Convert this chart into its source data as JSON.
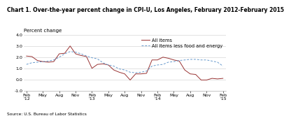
{
  "title": "Chart 1. Over-the-year percent change in CPI-U, Los Angeles, February 2012-February 2015",
  "ylabel": "Percent change",
  "source": "Source: U.S. Bureau of Labor Statistics",
  "ylim": [
    -1.0,
    4.0
  ],
  "yticks": [
    -1.0,
    0.0,
    1.0,
    2.0,
    3.0,
    4.0
  ],
  "x_tick_labels": [
    "Feb\n'12",
    "May",
    "Aug",
    "Nov",
    "Feb\n'13",
    "May",
    "Aug",
    "Nov",
    "Feb\n'14",
    "May",
    "Aug",
    "Nov",
    "Feb\n'15"
  ],
  "all_items_y": [
    2.1,
    2.05,
    1.7,
    1.6,
    1.55,
    1.6,
    2.3,
    2.35,
    3.0,
    2.3,
    2.15,
    2.05,
    1.0,
    1.35,
    1.4,
    1.3,
    0.85,
    0.65,
    0.5,
    -0.05,
    0.5,
    0.5,
    0.55,
    1.75,
    1.75,
    2.0,
    1.9,
    1.75,
    1.65,
    0.85,
    0.5,
    0.45,
    -0.05,
    -0.05,
    0.1,
    0.05,
    0.1
  ],
  "core_items_y": [
    1.35,
    1.5,
    1.55,
    1.6,
    1.65,
    1.75,
    2.0,
    2.3,
    2.5,
    2.45,
    2.3,
    2.1,
    1.95,
    1.85,
    1.5,
    1.3,
    1.2,
    0.95,
    0.85,
    0.65,
    0.6,
    0.65,
    0.75,
    1.2,
    1.3,
    1.35,
    1.55,
    1.6,
    1.7,
    1.75,
    1.8,
    1.8,
    1.75,
    1.75,
    1.65,
    1.55,
    1.2
  ],
  "all_items_color": "#993333",
  "core_items_color": "#6699CC",
  "legend_all": "All items",
  "legend_core": "All items less food and energy",
  "title_fontsize": 5.5,
  "ylabel_fontsize": 5.0,
  "tick_fontsize": 4.5,
  "source_fontsize": 4.2,
  "legend_fontsize": 4.8
}
